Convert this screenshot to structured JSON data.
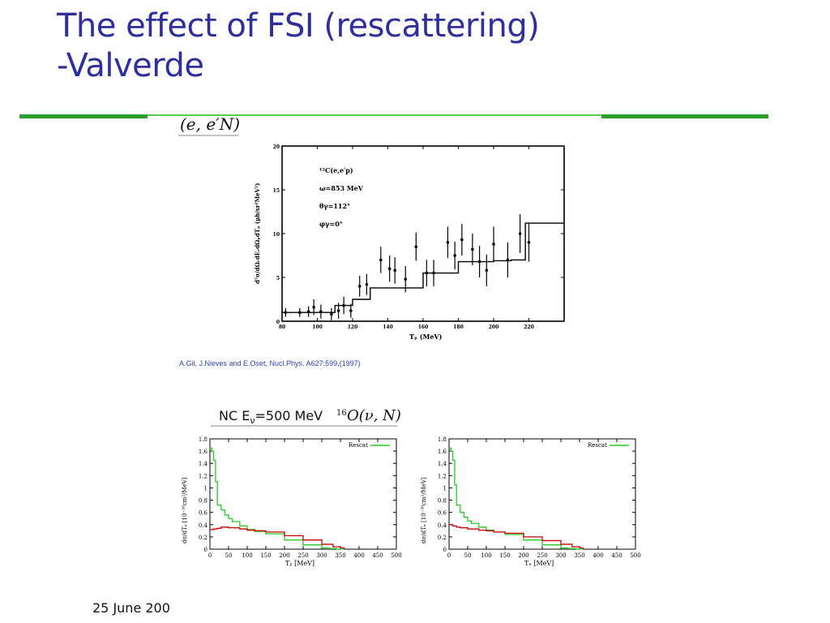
{
  "slide": {
    "title_line1": "The effect of FSI (rescattering)",
    "title_line2": "-Valverde",
    "footer_date": "25 June 200"
  },
  "colors": {
    "title": "#2e2e9e",
    "rule_dark": "#2aa02a",
    "rule_light": "#55cc55",
    "reference": "#2a3fb8",
    "series_green": "#22cc22",
    "series_red": "#cc0000"
  },
  "top_figure": {
    "header": "(e, e′N)",
    "inset_lines": [
      "¹²C(e,e′p)",
      "ω=853 MeV",
      "θγ=112°",
      "φγ=0°"
    ],
    "xlabel": "Tₚ (MeV)",
    "ylabel": "d⁵σ/dΩₑdEₑdΩₚdTₚ (μb/sr²MeV²)",
    "reference": "A.Gil, J.Nieves and E.Oset, Nucl.Phys. A627:599,(1997)"
  },
  "bottom_figure": {
    "header_left": "NC E",
    "header_sub": "ν",
    "header_mid": "=500 MeV",
    "header_sup": "16",
    "header_right": "O(ν, N)"
  },
  "chart_data": [
    {
      "type": "scatter",
      "title": "",
      "xlabel": "Tₚ (MeV)",
      "ylabel": "d⁵σ/dΩₑdEₑdΩₚdTₚ (μb/sr²MeV²)",
      "xlim": [
        80,
        240
      ],
      "ylim": [
        0,
        20
      ],
      "xticks": [
        80,
        100,
        120,
        140,
        160,
        180,
        200,
        220
      ],
      "yticks": [
        0,
        5,
        10,
        15,
        20
      ],
      "points": [
        [
          82,
          1.0,
          0.5
        ],
        [
          90,
          1.0,
          0.5
        ],
        [
          95,
          1.1,
          0.6
        ],
        [
          98,
          1.6,
          0.9
        ],
        [
          102,
          1.1,
          0.8
        ],
        [
          108,
          0.8,
          0.7
        ],
        [
          112,
          1.2,
          0.9
        ],
        [
          115,
          1.8,
          1.0
        ],
        [
          119,
          1.2,
          0.8
        ],
        [
          124,
          4.0,
          1.2
        ],
        [
          128,
          4.2,
          1.2
        ],
        [
          136,
          7.0,
          1.5
        ],
        [
          141,
          6.0,
          1.5
        ],
        [
          144,
          5.8,
          1.5
        ],
        [
          150,
          4.8,
          1.5
        ],
        [
          156,
          8.5,
          1.6
        ],
        [
          162,
          5.5,
          1.5
        ],
        [
          166,
          5.5,
          1.5
        ],
        [
          174,
          9.0,
          1.8
        ],
        [
          178,
          7.5,
          1.6
        ],
        [
          182,
          9.3,
          1.8
        ],
        [
          188,
          8.2,
          1.8
        ],
        [
          192,
          6.8,
          1.8
        ],
        [
          196,
          5.8,
          1.8
        ],
        [
          200,
          8.8,
          2.0
        ],
        [
          208,
          7.0,
          2.0
        ],
        [
          215,
          10.0,
          2.2
        ],
        [
          220,
          9.0,
          2.2
        ]
      ],
      "histogram": [
        [
          80,
          1.0
        ],
        [
          110,
          1.8
        ],
        [
          120,
          2.5
        ],
        [
          130,
          3.8
        ],
        [
          160,
          5.5
        ],
        [
          180,
          6.8
        ],
        [
          200,
          6.9
        ],
        [
          210,
          7.0
        ],
        [
          218,
          11.2
        ],
        [
          222,
          11.2
        ]
      ]
    },
    {
      "type": "line",
      "xlabel": "Tₚ [MeV]",
      "ylabel": "dσ/dTₚ [10⁻³⁹cm²/MeV]",
      "xlim": [
        0,
        500
      ],
      "ylim": [
        0,
        1.8
      ],
      "xticks": [
        0,
        50,
        100,
        150,
        200,
        250,
        300,
        350,
        400,
        450,
        500
      ],
      "yticks": [
        0,
        0.2,
        0.4,
        0.6,
        0.8,
        1,
        1.2,
        1.4,
        1.6,
        1.8
      ],
      "legend": "Rescat",
      "series": [
        {
          "name": "Rescat",
          "color": "#22cc22",
          "x": [
            0,
            5,
            10,
            15,
            20,
            30,
            40,
            50,
            60,
            80,
            100,
            120,
            150,
            200,
            250,
            300,
            320,
            340,
            360
          ],
          "y": [
            1.65,
            1.6,
            1.45,
            1.1,
            0.72,
            0.64,
            0.56,
            0.5,
            0.45,
            0.38,
            0.32,
            0.29,
            0.25,
            0.15,
            0.07,
            0.02,
            0.01,
            0.0,
            0.0
          ]
        },
        {
          "name": "",
          "color": "#cc0000",
          "x": [
            0,
            10,
            20,
            30,
            50,
            80,
            100,
            120,
            150,
            200,
            250,
            300,
            330,
            350,
            360
          ],
          "y": [
            0.32,
            0.33,
            0.34,
            0.36,
            0.35,
            0.33,
            0.31,
            0.3,
            0.28,
            0.22,
            0.15,
            0.08,
            0.04,
            0.02,
            0.0
          ]
        }
      ]
    },
    {
      "type": "line",
      "xlabel": "Tₙ [MeV]",
      "ylabel": "dσ/dTₙ [10⁻³⁹cm²/MeV]",
      "xlim": [
        0,
        500
      ],
      "ylim": [
        0,
        1.8
      ],
      "xticks": [
        0,
        50,
        100,
        150,
        200,
        250,
        300,
        350,
        400,
        450,
        500
      ],
      "yticks": [
        0,
        0.2,
        0.4,
        0.6,
        0.8,
        1,
        1.2,
        1.4,
        1.6,
        1.8
      ],
      "legend": "Rescat",
      "series": [
        {
          "name": "Rescat",
          "color": "#22cc22",
          "x": [
            0,
            5,
            10,
            15,
            20,
            30,
            40,
            50,
            60,
            80,
            100,
            120,
            150,
            200,
            250,
            300,
            320,
            340,
            360
          ],
          "y": [
            1.65,
            1.6,
            1.45,
            1.05,
            0.72,
            0.6,
            0.52,
            0.46,
            0.42,
            0.36,
            0.31,
            0.28,
            0.24,
            0.15,
            0.07,
            0.02,
            0.01,
            0.0,
            0.0
          ]
        },
        {
          "name": "",
          "color": "#cc0000",
          "x": [
            0,
            10,
            20,
            30,
            50,
            80,
            100,
            120,
            150,
            200,
            250,
            300,
            330,
            350,
            360
          ],
          "y": [
            0.4,
            0.38,
            0.36,
            0.35,
            0.33,
            0.31,
            0.3,
            0.28,
            0.26,
            0.2,
            0.14,
            0.08,
            0.04,
            0.02,
            0.0
          ]
        }
      ]
    }
  ]
}
